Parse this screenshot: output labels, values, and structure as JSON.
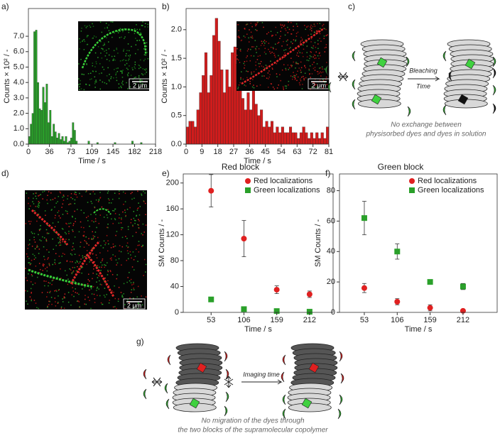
{
  "chart_data": [
    {
      "type": "histogram",
      "xlabel": "Time / s",
      "ylabel": "Counts × 10² / -",
      "color": "#2aa02a",
      "bins": [
        0,
        3,
        6,
        9,
        12,
        15,
        18,
        21,
        24,
        27,
        30,
        33,
        36,
        39,
        42,
        45,
        48,
        51,
        54,
        57,
        60,
        63,
        66,
        69,
        72,
        75,
        78,
        81,
        84,
        87,
        90,
        93,
        96,
        99,
        102,
        105,
        108,
        111,
        114,
        117,
        120,
        123,
        126,
        129,
        132,
        135,
        138,
        141,
        144,
        147,
        150,
        153,
        156,
        159,
        162,
        165,
        168,
        171,
        174,
        177,
        180,
        183,
        186,
        189,
        192,
        195,
        198,
        201,
        204,
        207,
        210,
        213,
        216
      ],
      "values": [
        0.5,
        1.3,
        2.0,
        7.3,
        7.4,
        4.0,
        2.3,
        2.2,
        3.7,
        2.7,
        3.9,
        1.4,
        2.2,
        0.5,
        1.3,
        0.8,
        0.4,
        0.7,
        0.3,
        0.5,
        0.2,
        0.5,
        0.1,
        0.2,
        0.4,
        1.4,
        0.9,
        0.2,
        0,
        0,
        0,
        0,
        0,
        0,
        0.2,
        0,
        0,
        0,
        0,
        0.1,
        0,
        0,
        0,
        0,
        0,
        0,
        0,
        0,
        0,
        0.1,
        0,
        0,
        0,
        0,
        0,
        0,
        0,
        0,
        0,
        0.2,
        0,
        0,
        0,
        0,
        0.1,
        0,
        0,
        0,
        0,
        0,
        0,
        0
      ],
      "xlim": [
        0,
        218
      ],
      "xticks": [
        0,
        36,
        73,
        109,
        145,
        182,
        218
      ],
      "ylim": [
        0,
        8.8
      ],
      "yticks": [
        {
          "value": 0,
          "label": "0.0"
        },
        {
          "value": 1,
          "label": "1.0"
        },
        {
          "value": 2,
          "label": "2.0"
        },
        {
          "value": 3,
          "label": "3.0"
        },
        {
          "value": 4,
          "label": "4.0"
        },
        {
          "value": 5,
          "label": "5.0"
        },
        {
          "value": 6,
          "label": "6.0"
        },
        {
          "value": 7,
          "label": "7.0"
        }
      ]
    },
    {
      "type": "histogram",
      "xlabel": "Time / s",
      "ylabel": "Counts × 10² / -",
      "color": "#d01c1c",
      "bins": [
        0,
        1.5,
        3,
        4.5,
        6,
        7.5,
        9,
        10.5,
        12,
        13.5,
        15,
        16.5,
        18,
        19.5,
        21,
        22.5,
        24,
        25.5,
        27,
        28.5,
        30,
        31.5,
        33,
        34.5,
        36,
        37.5,
        39,
        40.5,
        42,
        43.5,
        45,
        46.5,
        48,
        49.5,
        51,
        52.5,
        54,
        55.5,
        57,
        58.5,
        60,
        61.5,
        63,
        64.5,
        66,
        67.5,
        69,
        70.5,
        72,
        73.5,
        75,
        76.5,
        78,
        79.5,
        81
      ],
      "values": [
        0.3,
        0.4,
        0.4,
        0.3,
        0.6,
        0.9,
        1.2,
        1.6,
        0.9,
        1.2,
        1.9,
        2.2,
        1.8,
        1.3,
        0.9,
        1.3,
        1.0,
        1.6,
        1.7,
        1.4,
        1.0,
        0.8,
        0.6,
        0.9,
        0.6,
        1.0,
        0.7,
        0.5,
        0.6,
        0.3,
        0.4,
        0.3,
        0.4,
        0.2,
        0.3,
        0.2,
        0.3,
        0.2,
        0.2,
        0.3,
        0.2,
        0.2,
        0.1,
        0.2,
        0.3,
        0.2,
        0.1,
        0.2,
        0.1,
        0.2,
        0.1,
        0.2,
        0.1,
        0.3
      ],
      "xlim": [
        0,
        81
      ],
      "xticks": [
        0,
        9,
        18,
        27,
        36,
        45,
        54,
        63,
        72,
        81
      ],
      "ylim": [
        0,
        2.37
      ],
      "yticks": [
        {
          "value": 0,
          "label": "0.0"
        },
        0.5,
        {
          "value": 1,
          "label": "1.0"
        },
        1.5,
        {
          "value": 2,
          "label": "2.0"
        }
      ]
    },
    {
      "type": "scatter",
      "title": "Red block",
      "xlabel": "Time / s",
      "ylabel": "SM Counts / -",
      "x": [
        53,
        106,
        159,
        212
      ],
      "xlim": [
        8,
        250
      ],
      "xticks": [
        53,
        106,
        159,
        212
      ],
      "ylim": [
        0,
        214
      ],
      "yticks": [
        0,
        40,
        80,
        120,
        160,
        200
      ],
      "legend": "upper right",
      "series": [
        {
          "name": "Red localizations",
          "color": "#e02020",
          "marker": "circle",
          "values": [
            188,
            114,
            35,
            28
          ],
          "errors": [
            25,
            28,
            6,
            5
          ]
        },
        {
          "name": "Green localizations",
          "color": "#2aa02a",
          "marker": "square",
          "values": [
            20,
            5,
            2,
            1
          ],
          "errors": [
            3,
            2,
            1,
            1
          ]
        }
      ]
    },
    {
      "type": "scatter",
      "title": "Green block",
      "xlabel": "Time / s",
      "ylabel": "SM Counts / -",
      "x": [
        53,
        106,
        159,
        212
      ],
      "xlim": [
        13,
        267
      ],
      "xticks": [
        53,
        106,
        159,
        212
      ],
      "ylim": [
        0,
        91
      ],
      "yticks": [
        0,
        20,
        40,
        60,
        80
      ],
      "legend": "upper right",
      "series": [
        {
          "name": "Red localizations",
          "color": "#e02020",
          "marker": "circle",
          "values": [
            16,
            7,
            3,
            1
          ],
          "errors": [
            3,
            2,
            2,
            1
          ]
        },
        {
          "name": "Green localizations",
          "color": "#2aa02a",
          "marker": "square",
          "values": [
            62,
            40,
            20,
            17
          ],
          "errors": [
            11,
            5,
            1.5,
            2
          ]
        }
      ]
    }
  ],
  "panel_labels": [
    "a)",
    "b)",
    "c)",
    "d)",
    "e)",
    "f)",
    "g)"
  ],
  "scale_bars": [
    "2 μm",
    "2 μm",
    "2 μm"
  ],
  "diagram_c": {
    "arrow_label": [
      "Bleaching",
      "Time"
    ],
    "caption": [
      "No exchange between",
      "physisorbed dyes and dyes in solution"
    ]
  },
  "diagram_g": {
    "arrow_label": "Imaging time",
    "caption": [
      "No migration of the dyes through",
      "the two blocks of the supramolecular copolymer"
    ]
  }
}
